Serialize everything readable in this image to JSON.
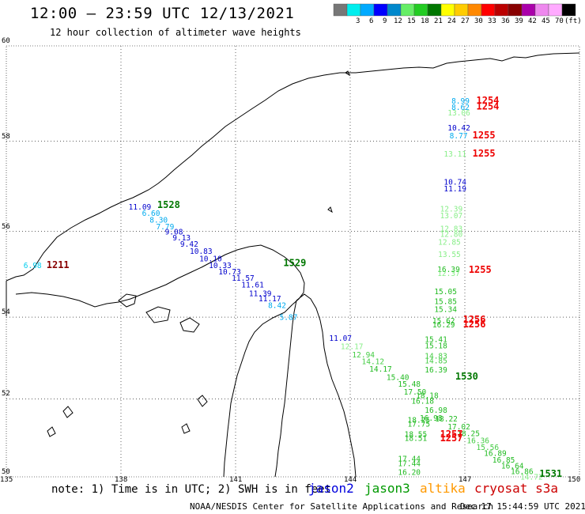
{
  "header": {
    "title": "12:00 — 23:59 UTC 12/13/2021",
    "subtitle": "12 hour collection of altimeter wave heights"
  },
  "colorbar": {
    "unit": "(ft)",
    "bins": [
      {
        "color": "#777777",
        "label": ""
      },
      {
        "color": "#00eeee",
        "label": "3"
      },
      {
        "color": "#00aaff",
        "label": "6"
      },
      {
        "color": "#0000ff",
        "label": "9"
      },
      {
        "color": "#0088cc",
        "label": "12"
      },
      {
        "color": "#66ee66",
        "label": "15"
      },
      {
        "color": "#22cc22",
        "label": "18"
      },
      {
        "color": "#007700",
        "label": "21"
      },
      {
        "color": "#ffff00",
        "label": "24"
      },
      {
        "color": "#ffcc00",
        "label": "27"
      },
      {
        "color": "#ff8800",
        "label": "30"
      },
      {
        "color": "#ff0000",
        "label": "33"
      },
      {
        "color": "#bb0000",
        "label": "36"
      },
      {
        "color": "#880000",
        "label": "39"
      },
      {
        "color": "#aa00aa",
        "label": "42"
      },
      {
        "color": "#ee88ee",
        "label": "45"
      },
      {
        "color": "#ffaaff",
        "label": "70"
      },
      {
        "color": "#000000",
        "label": ""
      }
    ]
  },
  "axes": {
    "lat_labels": [
      "60",
      "58",
      "56",
      "54",
      "52",
      "50"
    ],
    "lon_labels": [
      "135",
      "138",
      "141",
      "144",
      "147",
      "150"
    ]
  },
  "footer": {
    "note": "note: 1) Time is in UTC; 2) SWH is in feet",
    "satellites": [
      {
        "name": "jason2",
        "color": "#0000dd"
      },
      {
        "name": "jason3",
        "color": "#009900"
      },
      {
        "name": "altika",
        "color": "#ff9900"
      },
      {
        "name": "cryosat s3a",
        "color": "#cc0000"
      }
    ],
    "credit_left": "NOAA/NESDIS Center for Satellite Applications and Research",
    "credit_right": "Dec 17 15:44:59 UTC 2021"
  },
  "observations": [
    {
      "lon": 135.45,
      "lat": 55.16,
      "v": "6.98",
      "c": "#00ccee"
    },
    {
      "lon": 138.2,
      "lat": 56.5,
      "v": "11.09",
      "c": "#0000cc"
    },
    {
      "lon": 138.55,
      "lat": 56.35,
      "v": "6.60",
      "c": "#00aaee"
    },
    {
      "lon": 138.75,
      "lat": 56.2,
      "v": "8.30",
      "c": "#00aaee"
    },
    {
      "lon": 138.92,
      "lat": 56.05,
      "v": "7.79",
      "c": "#00aaee"
    },
    {
      "lon": 139.15,
      "lat": 55.93,
      "v": "9.08",
      "c": "#0000cc"
    },
    {
      "lon": 139.35,
      "lat": 55.8,
      "v": "9.13",
      "c": "#0000cc"
    },
    {
      "lon": 139.55,
      "lat": 55.65,
      "v": "9.42",
      "c": "#0000cc"
    },
    {
      "lon": 139.8,
      "lat": 55.49,
      "v": "10.83",
      "c": "#0000cc"
    },
    {
      "lon": 140.05,
      "lat": 55.31,
      "v": "10.10",
      "c": "#0000cc"
    },
    {
      "lon": 140.3,
      "lat": 55.16,
      "v": "10.33",
      "c": "#0000cc"
    },
    {
      "lon": 140.55,
      "lat": 55.01,
      "v": "10.73",
      "c": "#0000cc"
    },
    {
      "lon": 140.9,
      "lat": 54.86,
      "v": "11.57",
      "c": "#0000cc"
    },
    {
      "lon": 141.15,
      "lat": 54.7,
      "v": "11.61",
      "c": "#0000cc"
    },
    {
      "lon": 141.35,
      "lat": 54.5,
      "v": "11.39",
      "c": "#0000cc"
    },
    {
      "lon": 141.6,
      "lat": 54.38,
      "v": "11.17",
      "c": "#0000cc"
    },
    {
      "lon": 141.85,
      "lat": 54.22,
      "v": "8.42",
      "c": "#00aaee"
    },
    {
      "lon": 142.15,
      "lat": 53.93,
      "v": "5.87",
      "c": "#00aaee"
    },
    {
      "lon": 143.45,
      "lat": 53.43,
      "v": "11.07",
      "c": "#0000cc"
    },
    {
      "lon": 143.75,
      "lat": 53.23,
      "v": "12.17",
      "c": "#88ee88"
    },
    {
      "lon": 144.05,
      "lat": 53.02,
      "v": "12.94",
      "c": "#44cc44"
    },
    {
      "lon": 144.3,
      "lat": 52.86,
      "v": "14.12",
      "c": "#44cc44"
    },
    {
      "lon": 144.5,
      "lat": 52.67,
      "v": "14.17",
      "c": "#22bb22"
    },
    {
      "lon": 144.95,
      "lat": 52.47,
      "v": "15.40",
      "c": "#22bb22"
    },
    {
      "lon": 145.25,
      "lat": 52.3,
      "v": "15.48",
      "c": "#22bb22"
    },
    {
      "lon": 145.4,
      "lat": 52.1,
      "v": "17.50",
      "c": "#22bb22"
    },
    {
      "lon": 145.6,
      "lat": 51.88,
      "v": "16.18",
      "c": "#22bb22"
    },
    {
      "lon": 145.95,
      "lat": 51.65,
      "v": "16.98",
      "c": "#22bb22"
    },
    {
      "lon": 146.22,
      "lat": 51.43,
      "v": "18.22",
      "c": "#22bb22"
    },
    {
      "lon": 146.55,
      "lat": 51.23,
      "v": "17.02",
      "c": "#22bb22"
    },
    {
      "lon": 146.8,
      "lat": 51.05,
      "v": "18.25",
      "c": "#22bb22"
    },
    {
      "lon": 147.05,
      "lat": 50.87,
      "v": "16.36",
      "c": "#44cc44"
    },
    {
      "lon": 147.3,
      "lat": 50.7,
      "v": "15.56",
      "c": "#44cc44"
    },
    {
      "lon": 147.5,
      "lat": 50.55,
      "v": "16.89",
      "c": "#22bb22"
    },
    {
      "lon": 147.72,
      "lat": 50.37,
      "v": "16.85",
      "c": "#22bb22"
    },
    {
      "lon": 147.95,
      "lat": 50.22,
      "v": "16.64",
      "c": "#22bb22"
    },
    {
      "lon": 148.2,
      "lat": 50.07,
      "v": "16.86",
      "c": "#22bb22"
    },
    {
      "lon": 148.45,
      "lat": 49.93,
      "v": "14.72",
      "c": "#88ee88"
    },
    {
      "lon": 146.65,
      "lat": 58.8,
      "v": "8.99",
      "c": "#00aaee"
    },
    {
      "lon": 146.65,
      "lat": 58.67,
      "v": "8.62",
      "c": "#00aaee"
    },
    {
      "lon": 146.55,
      "lat": 58.55,
      "v": "13.06",
      "c": "#88ee88"
    },
    {
      "lon": 146.55,
      "lat": 58.23,
      "v": "10.42",
      "c": "#0000cc"
    },
    {
      "lon": 146.6,
      "lat": 58.06,
      "v": "8.77",
      "c": "#00aaee"
    },
    {
      "lon": 146.45,
      "lat": 57.67,
      "v": "13.11",
      "c": "#88ee88"
    },
    {
      "lon": 146.45,
      "lat": 57.05,
      "v": "10.74",
      "c": "#0000cc"
    },
    {
      "lon": 146.45,
      "lat": 56.9,
      "v": "11.19",
      "c": "#0000cc"
    },
    {
      "lon": 146.35,
      "lat": 56.45,
      "v": "12.39",
      "c": "#88ee88"
    },
    {
      "lon": 146.35,
      "lat": 56.3,
      "v": "13.07",
      "c": "#88ee88"
    },
    {
      "lon": 146.35,
      "lat": 56.0,
      "v": "12.83",
      "c": "#88ee88"
    },
    {
      "lon": 146.35,
      "lat": 55.88,
      "v": "12.80",
      "c": "#88ee88"
    },
    {
      "lon": 146.3,
      "lat": 55.7,
      "v": "12.85",
      "c": "#88ee88"
    },
    {
      "lon": 146.3,
      "lat": 55.41,
      "v": "13.55",
      "c": "#88ee88"
    },
    {
      "lon": 146.28,
      "lat": 55.07,
      "v": "16.39",
      "c": "#22bb22"
    },
    {
      "lon": 146.28,
      "lat": 54.97,
      "v": "12.37",
      "c": "#88ee88"
    },
    {
      "lon": 146.2,
      "lat": 54.55,
      "v": "15.05",
      "c": "#22bb22"
    },
    {
      "lon": 146.2,
      "lat": 54.31,
      "v": "15.85",
      "c": "#22bb22"
    },
    {
      "lon": 146.2,
      "lat": 54.12,
      "v": "15.34",
      "c": "#22bb22"
    },
    {
      "lon": 146.15,
      "lat": 53.85,
      "v": "15.62",
      "c": "#22bb22"
    },
    {
      "lon": 146.15,
      "lat": 53.75,
      "v": "16.29",
      "c": "#22bb22"
    },
    {
      "lon": 145.95,
      "lat": 53.4,
      "v": "15.41",
      "c": "#22bb22"
    },
    {
      "lon": 145.95,
      "lat": 53.25,
      "v": "15.18",
      "c": "#22bb22"
    },
    {
      "lon": 145.95,
      "lat": 53.0,
      "v": "14.83",
      "c": "#44cc44"
    },
    {
      "lon": 145.95,
      "lat": 52.88,
      "v": "14.85",
      "c": "#44cc44"
    },
    {
      "lon": 145.95,
      "lat": 52.65,
      "v": "16.39",
      "c": "#22bb22"
    },
    {
      "lon": 145.72,
      "lat": 52.02,
      "v": "18.18",
      "c": "#22bb22"
    },
    {
      "lon": 145.82,
      "lat": 51.45,
      "v": "16.98",
      "c": "#22bb22"
    },
    {
      "lon": 145.5,
      "lat": 51.4,
      "v": "18.25",
      "c": "#22bb22"
    },
    {
      "lon": 145.5,
      "lat": 51.3,
      "v": "17.75",
      "c": "#22bb22"
    },
    {
      "lon": 145.42,
      "lat": 51.03,
      "v": "18.55",
      "c": "#22bb22"
    },
    {
      "lon": 145.42,
      "lat": 50.93,
      "v": "18.51",
      "c": "#22bb22"
    },
    {
      "lon": 145.25,
      "lat": 50.4,
      "v": "17.44",
      "c": "#22bb22"
    },
    {
      "lon": 145.25,
      "lat": 50.28,
      "v": "17.44",
      "c": "#22bb22"
    },
    {
      "lon": 145.25,
      "lat": 50.05,
      "v": "16.20",
      "c": "#22bb22"
    }
  ],
  "passes": [
    {
      "lon": 136.05,
      "lat": 55.16,
      "t": "1211",
      "c": "#880000"
    },
    {
      "lon": 138.95,
      "lat": 56.53,
      "t": "1528",
      "c": "#007700"
    },
    {
      "lon": 142.25,
      "lat": 55.2,
      "t": "1529",
      "c": "#007700"
    },
    {
      "lon": 146.75,
      "lat": 52.48,
      "t": "1530",
      "c": "#007700"
    },
    {
      "lon": 148.95,
      "lat": 50.0,
      "t": "1531",
      "c": "#007700"
    },
    {
      "lon": 147.3,
      "lat": 58.8,
      "t": "1254",
      "c": "#ee0000"
    },
    {
      "lon": 147.3,
      "lat": 58.68,
      "t": "1254",
      "c": "#ee0000"
    },
    {
      "lon": 147.2,
      "lat": 58.06,
      "t": "1255",
      "c": "#ee0000"
    },
    {
      "lon": 147.2,
      "lat": 57.67,
      "t": "1255",
      "c": "#ee0000"
    },
    {
      "lon": 147.1,
      "lat": 55.05,
      "t": "1255",
      "c": "#ee0000"
    },
    {
      "lon": 146.95,
      "lat": 53.87,
      "t": "1256",
      "c": "#ee0000"
    },
    {
      "lon": 146.95,
      "lat": 53.75,
      "t": "1256",
      "c": "#ee0000"
    },
    {
      "lon": 146.35,
      "lat": 51.02,
      "t": "1257",
      "c": "#ee0000"
    },
    {
      "lon": 146.35,
      "lat": 50.92,
      "t": "1257",
      "c": "#ee0000"
    }
  ]
}
